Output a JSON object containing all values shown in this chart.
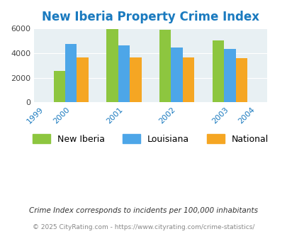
{
  "title": "New Iberia Property Crime Index",
  "all_years": [
    1999,
    2000,
    2001,
    2002,
    2003,
    2004
  ],
  "data_years": [
    2000,
    2001,
    2002,
    2003
  ],
  "new_iberia": [
    2580,
    5940,
    5880,
    5030
  ],
  "louisiana": [
    4750,
    4650,
    4430,
    4310
  ],
  "national": [
    3630,
    3660,
    3620,
    3580
  ],
  "colors": {
    "new_iberia": "#8dc63f",
    "louisiana": "#4da6e8",
    "national": "#f5a623"
  },
  "ylim": [
    0,
    6000
  ],
  "yticks": [
    0,
    2000,
    4000,
    6000
  ],
  "bg_color": "#e8f0f3",
  "legend_labels": [
    "New Iberia",
    "Louisiana",
    "National"
  ],
  "footnote1": "Crime Index corresponds to incidents per 100,000 inhabitants",
  "footnote2": "© 2025 CityRating.com - https://www.cityrating.com/crime-statistics/",
  "title_color": "#1a7abf",
  "xtick_color": "#1a7abf",
  "footnote1_color": "#333333",
  "footnote2_color": "#888888"
}
